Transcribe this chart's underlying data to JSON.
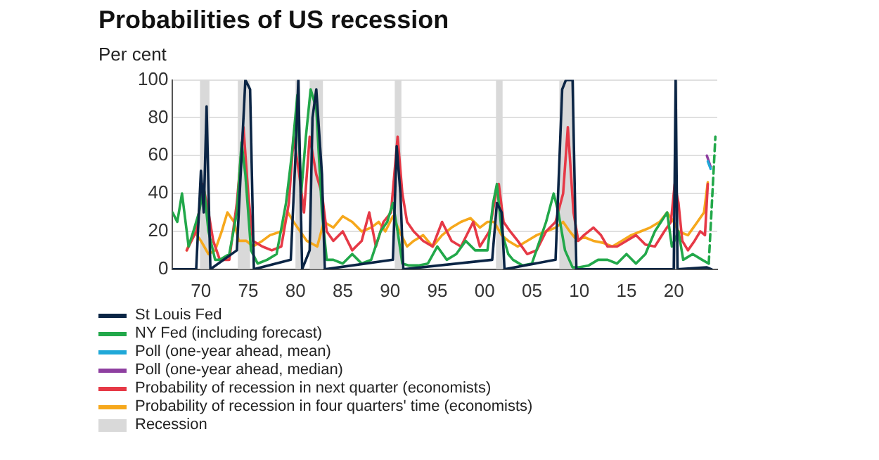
{
  "chart_data": {
    "type": "line",
    "title": "Probabilities of US recession",
    "ylabel": "Per cent",
    "xlim": [
      1967,
      2024.6
    ],
    "xticks": [
      {
        "value": 1970,
        "label": "70"
      },
      {
        "value": 1975,
        "label": "75"
      },
      {
        "value": 1980,
        "label": "80"
      },
      {
        "value": 1985,
        "label": "85"
      },
      {
        "value": 1990,
        "label": "90"
      },
      {
        "value": 1995,
        "label": "95"
      },
      {
        "value": 2000,
        "label": "00"
      },
      {
        "value": 2005,
        "label": "05"
      },
      {
        "value": 2010,
        "label": "10"
      },
      {
        "value": 2015,
        "label": "15"
      },
      {
        "value": 2020,
        "label": "20"
      }
    ],
    "ylim": [
      0,
      100
    ],
    "yticks": [
      0,
      20,
      40,
      60,
      80,
      100
    ],
    "grid": "y",
    "legend": "bottom",
    "marker": "none",
    "line_style": "solid",
    "bands": [
      {
        "axis": "x",
        "from": 1969.9,
        "to": 1970.9,
        "label": "Recession",
        "color": "#d9d9d9"
      },
      {
        "axis": "x",
        "from": 1973.9,
        "to": 1975.2,
        "color": "#d9d9d9"
      },
      {
        "axis": "x",
        "from": 1980.0,
        "to": 1980.5,
        "color": "#d9d9d9"
      },
      {
        "axis": "x",
        "from": 1981.5,
        "to": 1982.9,
        "color": "#d9d9d9"
      },
      {
        "axis": "x",
        "from": 1990.5,
        "to": 1991.2,
        "color": "#d9d9d9"
      },
      {
        "axis": "x",
        "from": 2001.2,
        "to": 2001.9,
        "color": "#d9d9d9"
      },
      {
        "axis": "x",
        "from": 2007.9,
        "to": 2009.5,
        "color": "#d9d9d9"
      },
      {
        "axis": "x",
        "from": 2020.1,
        "to": 2020.4,
        "color": "#d9d9d9"
      }
    ],
    "series": [
      {
        "name": "St Louis Fed",
        "color": "#0b2545",
        "x": [
          1967,
          1969.5,
          1970.0,
          1970.3,
          1970.6,
          1971,
          1973.8,
          1974.3,
          1974.7,
          1975.2,
          1975.6,
          1979.5,
          1980.0,
          1980.3,
          1980.7,
          1981.5,
          1981.8,
          1982.2,
          1982.8,
          1983.1,
          1990.3,
          1990.7,
          1991.1,
          1991.4,
          2000.8,
          2001.3,
          2001.8,
          2002.1,
          2007.5,
          2008.2,
          2008.6,
          2009.3,
          2009.7,
          2020.0,
          2020.2,
          2020.4,
          2023.5,
          2024
        ],
        "values": [
          0,
          0,
          52,
          30,
          86,
          0,
          10,
          60,
          100,
          95,
          0,
          5,
          60,
          100,
          0,
          10,
          80,
          95,
          50,
          0,
          5,
          65,
          40,
          0,
          5,
          35,
          30,
          0,
          5,
          95,
          100,
          100,
          0,
          0,
          100,
          0,
          1,
          0
        ]
      },
      {
        "name": "NY Fed (including forecast)",
        "color": "#22a84a",
        "x": [
          1967,
          1967.5,
          1968,
          1968.7,
          1969.2,
          1969.8,
          1970.3,
          1970.8,
          1971.5,
          1972,
          1973,
          1973.8,
          1974.3,
          1974.7,
          1975.3,
          1976,
          1977,
          1978,
          1979,
          1979.6,
          1980.2,
          1980.6,
          1981.1,
          1981.6,
          1982.2,
          1982.8,
          1983.3,
          1984,
          1985,
          1986,
          1987,
          1988,
          1989,
          1989.7,
          1990.3,
          1990.8,
          1991.3,
          1992,
          1993,
          1994,
          1995,
          1996,
          1997,
          1998,
          1999,
          2000.3,
          2000.9,
          2001.3,
          2001.8,
          2002.5,
          2003,
          2004,
          2005,
          2006.5,
          2007.3,
          2007.8,
          2008.5,
          2009.3,
          2010,
          2011,
          2012,
          2013,
          2014,
          2015,
          2016,
          2017,
          2018,
          2019.3,
          2019.8,
          2020.5,
          2021,
          2022,
          2023,
          2023.7
        ],
        "values": [
          30,
          25,
          40,
          12,
          20,
          30,
          44,
          20,
          5,
          5,
          8,
          30,
          67,
          50,
          10,
          3,
          5,
          8,
          35,
          60,
          92,
          40,
          70,
          95,
          85,
          30,
          5,
          5,
          3,
          8,
          3,
          5,
          20,
          25,
          35,
          20,
          3,
          2,
          2,
          3,
          12,
          5,
          8,
          15,
          10,
          10,
          35,
          45,
          20,
          8,
          5,
          2,
          3,
          25,
          40,
          30,
          10,
          1,
          1,
          2,
          5,
          5,
          3,
          8,
          3,
          8,
          20,
          30,
          12,
          20,
          5,
          8,
          5,
          3
        ]
      },
      {
        "color": "#22a84a",
        "line_style": "dashed",
        "x": [
          2023.7,
          2024.4
        ],
        "values": [
          3,
          70
        ]
      },
      {
        "name": "Poll (one-year ahead, mean)",
        "color": "#20a8d8",
        "x": [
          2023.6,
          2023.9
        ],
        "values": [
          57,
          53
        ]
      },
      {
        "name": "Poll (one-year ahead, median)",
        "color": "#8e3fa0",
        "x": [
          2023.5,
          2023.9
        ],
        "values": [
          60,
          54
        ]
      },
      {
        "name": "Probability of recession in next quarter (economists)",
        "color": "#e63946",
        "x": [
          1968.5,
          1969.5,
          1970.2,
          1970.8,
          1971.3,
          1972,
          1973,
          1973.8,
          1974.5,
          1975,
          1975.5,
          1976.5,
          1977.5,
          1978.5,
          1979.3,
          1979.8,
          1980.4,
          1980.9,
          1981.5,
          1982.2,
          1982.8,
          1983.3,
          1984,
          1985,
          1986,
          1987,
          1987.8,
          1988.5,
          1989.3,
          1990.1,
          1990.8,
          1991.3,
          1991.8,
          1992.5,
          1993.5,
          1994.5,
          1995.5,
          1996.5,
          1997.5,
          1998.8,
          1999.5,
          2000.5,
          2001.2,
          2001.5,
          2002,
          2002.7,
          2003.5,
          2004.5,
          2005.5,
          2006.5,
          2007.5,
          2008.3,
          2008.8,
          2009.4,
          2009.9,
          2010.5,
          2011.5,
          2012.3,
          2013,
          2014,
          2015,
          2016,
          2017,
          2018,
          2019,
          2019.7,
          2020.1,
          2020.5,
          2020.9,
          2021.5,
          2022.2,
          2022.8,
          2023.3,
          2023.6
        ],
        "values": [
          10,
          20,
          45,
          30,
          15,
          5,
          5,
          35,
          75,
          40,
          15,
          12,
          10,
          12,
          35,
          70,
          50,
          30,
          70,
          50,
          40,
          20,
          15,
          20,
          10,
          15,
          30,
          12,
          25,
          30,
          70,
          40,
          25,
          20,
          15,
          12,
          25,
          15,
          12,
          25,
          12,
          20,
          40,
          45,
          25,
          20,
          15,
          8,
          10,
          20,
          25,
          40,
          75,
          30,
          15,
          18,
          22,
          18,
          12,
          12,
          15,
          18,
          13,
          12,
          20,
          25,
          45,
          35,
          15,
          10,
          15,
          20,
          18,
          45
        ]
      },
      {
        "name": "Probability of recession in four quarters' time (economists)",
        "color": "#f6a81c",
        "x": [
          1968.5,
          1969.3,
          1970,
          1970.8,
          1971.5,
          1972.2,
          1972.8,
          1973.5,
          1974,
          1974.8,
          1975.5,
          1976.5,
          1977.3,
          1978.5,
          1979.2,
          1979.8,
          1980.5,
          1981.2,
          1982.3,
          1983,
          1984,
          1985,
          1986,
          1987,
          1988,
          1988.8,
          1989.5,
          1990.3,
          1991,
          1991.8,
          1992.5,
          1993.5,
          1994.5,
          1995.5,
          1996.5,
          1997.5,
          1998.5,
          1999.5,
          2000.3,
          2001,
          2001.8,
          2002.5,
          2003.5,
          2004.5,
          2005.5,
          2006.5,
          2007.5,
          2008.3,
          2009,
          2009.8,
          2010.5,
          2011.5,
          2012.5,
          2013.5,
          2014.5,
          2015.5,
          2016.5,
          2017.5,
          2018.5,
          2019.3,
          2020,
          2020.5,
          2021.5,
          2022.5,
          2023.2,
          2023.6
        ],
        "values": [
          10,
          20,
          15,
          8,
          10,
          20,
          30,
          25,
          15,
          15,
          12,
          15,
          18,
          20,
          30,
          25,
          20,
          15,
          12,
          25,
          22,
          28,
          25,
          20,
          22,
          25,
          20,
          28,
          20,
          12,
          15,
          18,
          12,
          18,
          22,
          25,
          27,
          22,
          25,
          25,
          18,
          15,
          12,
          15,
          18,
          20,
          22,
          25,
          20,
          15,
          17,
          15,
          14,
          12,
          15,
          18,
          20,
          22,
          25,
          30,
          25,
          20,
          18,
          25,
          30,
          46
        ]
      }
    ]
  }
}
